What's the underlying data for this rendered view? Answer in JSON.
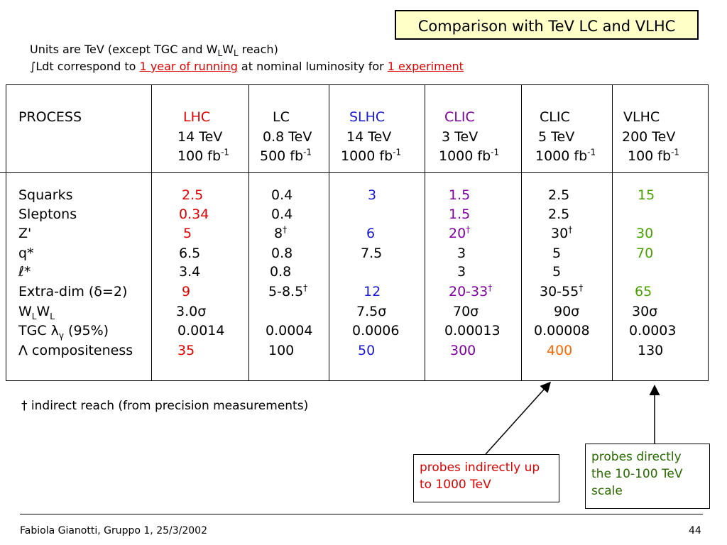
{
  "title": "Comparison with TeV LC and VLHC",
  "notes": {
    "line1_prefix": "Units are TeV (except TGC and W",
    "line1_sub1": "L",
    "line1_mid": "W",
    "line1_sub2": "L",
    "line1_suffix": " reach)",
    "line2_icon": "integral-symbol-icon",
    "line2_symbol": "∫",
    "line2_prefix": "Ldt  correspond to ",
    "line2_link1": "1 year of running",
    "line2_mid": " at nominal luminosity for ",
    "line2_link2": "1 experiment"
  },
  "table": {
    "process_label": "PROCESS",
    "columns": [
      {
        "name": "LHC",
        "energy": "14 TeV",
        "lumi": "100 fb",
        "lumi_exp": "-1",
        "color": "#e00000"
      },
      {
        "name": "LC",
        "energy": "0.8 TeV",
        "lumi": "500 fb",
        "lumi_exp": "-1",
        "color": "#000000"
      },
      {
        "name": "SLHC",
        "energy": "14 TeV",
        "lumi": "1000 fb",
        "lumi_exp": "-1",
        "color": "#1a1ad2"
      },
      {
        "name": "CLIC",
        "energy": "3 TeV",
        "lumi": "1000 fb",
        "lumi_exp": "-1",
        "color": "#8000a0"
      },
      {
        "name": "CLIC",
        "energy": "5 TeV",
        "lumi": "1000 fb",
        "lumi_exp": "-1",
        "color": "#000000"
      },
      {
        "name": "VLHC",
        "energy": "200 TeV",
        "lumi": "100 fb",
        "lumi_exp": "-1",
        "color": "#000000"
      }
    ],
    "rows": [
      {
        "label": "Squarks",
        "values": [
          "2.5",
          "0.4",
          "3",
          "1.5",
          "2.5",
          "15"
        ]
      },
      {
        "label": "Sleptons",
        "values": [
          "0.34",
          "0.4",
          "",
          "1.5",
          "2.5",
          ""
        ]
      },
      {
        "label": "Z'",
        "values": [
          "5",
          "8†",
          "6",
          "20†",
          "30†",
          "30"
        ]
      },
      {
        "label": "q*",
        "values": [
          "6.5",
          "0.8",
          "7.5",
          "3",
          "5",
          "70"
        ]
      },
      {
        "label": "ℓ*",
        "values": [
          "3.4",
          "0.8",
          "",
          "3",
          "5",
          ""
        ]
      },
      {
        "label": "Extra-dim (δ=2)",
        "values": [
          "9",
          "5-8.5†",
          "12",
          "20-33†",
          "30-55†",
          "65"
        ]
      },
      {
        "label": "WLWL",
        "values": [
          "3.0σ",
          "",
          "7.5σ",
          "70σ",
          "90σ",
          "30σ"
        ]
      },
      {
        "label": "TGC λγ (95%)",
        "values": [
          "0.0014",
          "0.0004",
          "0.0006",
          "0.00013",
          "0.00008",
          "0.0003"
        ]
      },
      {
        "label": "Λ compositeness",
        "values": [
          "35",
          "100",
          "50",
          "300",
          "400",
          "130"
        ]
      }
    ]
  },
  "footnote": "† indirect reach (from precision measurements)",
  "callouts": {
    "indirect": "probes indirectly up to 1000 TeV",
    "direct": "probes directly the 10-100 TeV scale"
  },
  "footer": {
    "left": "Fabiola Gianotti,  Gruppo 1, 25/3/2002",
    "page": "44"
  },
  "colors": {
    "lhc": "#e00000",
    "slhc": "#1a1ad2",
    "clic3": "#8000a0",
    "vlhc": "#4aa000",
    "highlight_orange": "#ff6600",
    "title_bg": "#ffffc8"
  }
}
